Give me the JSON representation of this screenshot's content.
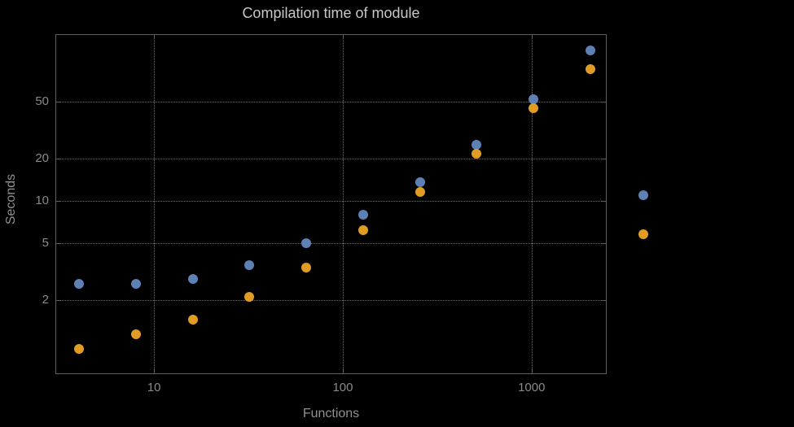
{
  "colors": {
    "background": "#000000",
    "frame": "#5f5f5f",
    "grid": "#6e6e6e",
    "title_text": "#c8c8c8",
    "tick_text": "#8a8a8a",
    "axis_label_text": "#909090",
    "blue": "#5e81b5",
    "orange": "#e19c24"
  },
  "chart_data": {
    "type": "scatter",
    "title": "Compilation time of module",
    "xlabel": "Functions",
    "ylabel": "Seconds",
    "xscale": "log",
    "yscale": "log",
    "xlim": [
      3,
      2500
    ],
    "ylim": [
      0.6,
      150
    ],
    "xticks": [
      10,
      100,
      1000
    ],
    "yticks": [
      2,
      5,
      10,
      20,
      50
    ],
    "grid": true,
    "grid_style": "dotted",
    "x": [
      4,
      8,
      16,
      32,
      64,
      128,
      256,
      512,
      1024,
      2048
    ],
    "series": [
      {
        "name": "blue",
        "color": "#5e81b5",
        "values": [
          2.6,
          2.6,
          2.8,
          3.5,
          5.0,
          8.0,
          13.5,
          25,
          52,
          115
        ]
      },
      {
        "name": "orange",
        "color": "#e19c24",
        "values": [
          0.9,
          1.15,
          1.45,
          2.1,
          3.4,
          6.2,
          11.5,
          21.5,
          45,
          85
        ]
      }
    ],
    "legend": {
      "position": "right-outside",
      "labels_visible": false,
      "markers": [
        {
          "color": "#5e81b5"
        },
        {
          "color": "#e19c24"
        }
      ]
    }
  }
}
